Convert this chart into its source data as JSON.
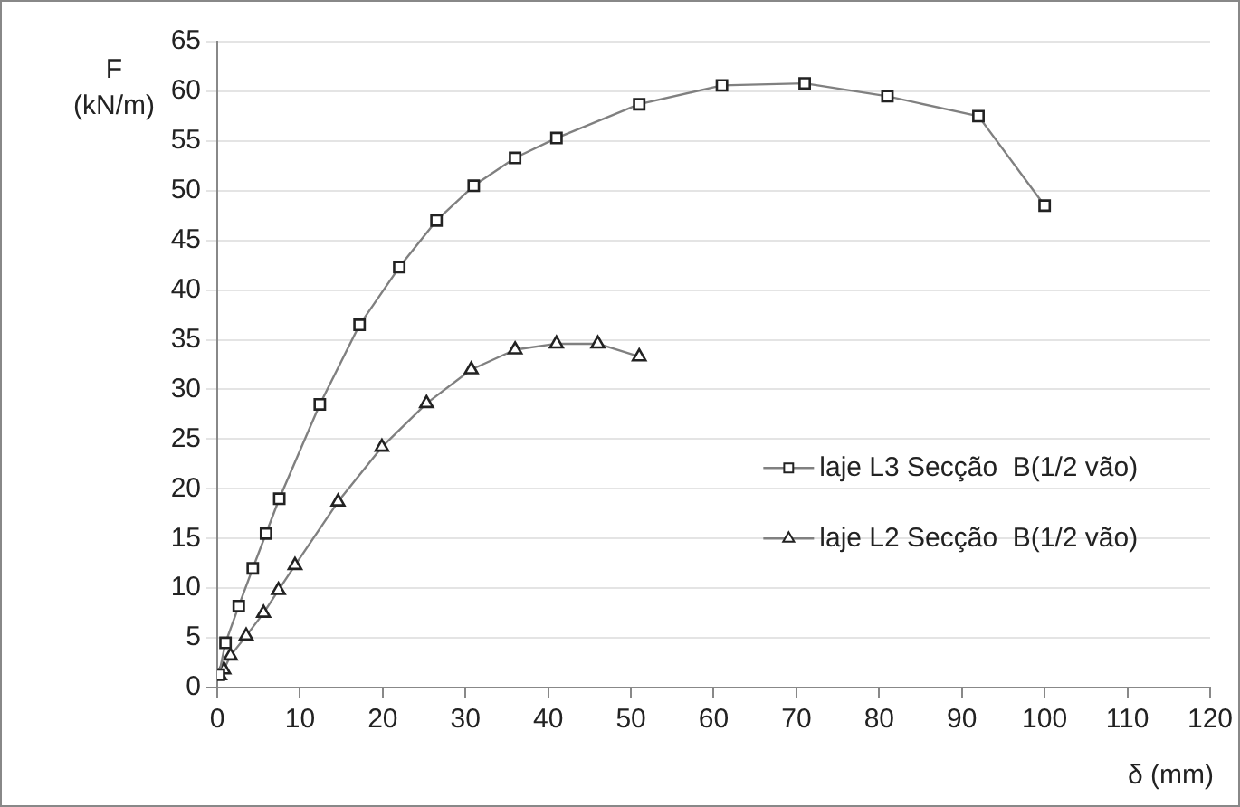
{
  "chart_data": {
    "type": "line",
    "xlabel": "δ (mm)",
    "ylabel": "F\n(kN/m)",
    "xlim": [
      0,
      120
    ],
    "xticks": [
      0,
      10,
      20,
      30,
      40,
      50,
      60,
      70,
      80,
      90,
      100,
      110,
      120
    ],
    "ylim": [
      0,
      65
    ],
    "yticks": [
      0,
      5,
      10,
      15,
      20,
      25,
      30,
      35,
      40,
      45,
      50,
      55,
      60,
      65
    ],
    "grid": "y",
    "legend": "right",
    "series": [
      {
        "name": "laje L3 Secção  B(1/2 vão)",
        "color": "#808080",
        "marker": "square",
        "x": [
          0.2,
          1,
          2.6,
          4.3,
          5.9,
          7.5,
          12.4,
          17.2,
          22,
          26.5,
          31,
          36,
          41,
          51,
          61,
          71,
          81,
          92,
          100
        ],
        "values": [
          1.3,
          4.5,
          8.2,
          12,
          15.5,
          19,
          28.5,
          36.5,
          42.3,
          47,
          50.5,
          53.3,
          55.3,
          58.7,
          60.6,
          60.8,
          59.5,
          57.5,
          48.5
        ]
      },
      {
        "name": "laje L2 Secção  B(1/2 vão)",
        "color": "#808080",
        "marker": "triangle",
        "x": [
          0.3,
          0.8,
          1.6,
          3.5,
          5.6,
          7.4,
          9.4,
          14.6,
          19.9,
          25.3,
          30.7,
          36,
          41,
          46,
          51
        ],
        "values": [
          1.2,
          1.8,
          3.2,
          5.2,
          7.5,
          9.8,
          12.3,
          18.7,
          24.2,
          28.6,
          32,
          34,
          34.6,
          34.6,
          33.3
        ]
      }
    ]
  }
}
